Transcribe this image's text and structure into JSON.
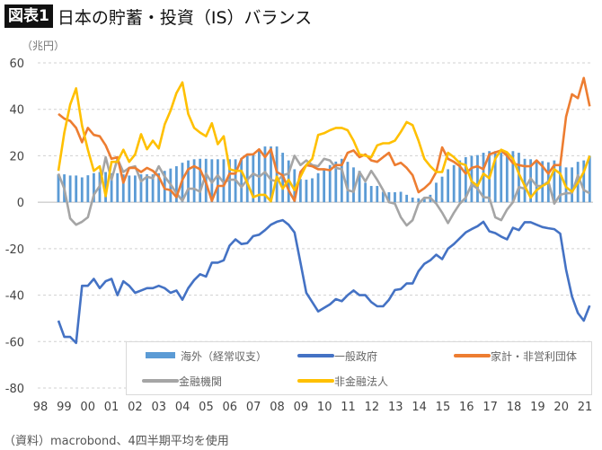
{
  "header": {
    "badge": "図表1",
    "title": "日本の貯蓄・投資（IS）バランス"
  },
  "unit_label": "（兆円）",
  "footnote": "（資料）macrobond、4四半期平均を使用",
  "chart_data": {
    "type": "bar+line",
    "title": "日本の貯蓄・投資（IS）バランス",
    "ylabel": "（兆円）",
    "ylim": [
      -80,
      60
    ],
    "yticks": [
      60,
      40,
      20,
      0,
      -20,
      -40,
      -60,
      -80
    ],
    "x_tick_labels": [
      "98",
      "99",
      "00",
      "01",
      "02",
      "03",
      "04",
      "05",
      "06",
      "07",
      "08",
      "09",
      "10",
      "11",
      "12",
      "13",
      "14",
      "15",
      "16",
      "17",
      "18",
      "19",
      "20",
      "21"
    ],
    "frequency": "quarterly",
    "grid": true,
    "legend_position": "bottom",
    "series": [
      {
        "name": "海外（経常収支）",
        "type": "bar",
        "color": "#5b9bd5",
        "values": [
          12,
          12,
          11.5,
          11.5,
          10.7,
          11.6,
          12.5,
          13,
          13,
          12.5,
          12.5,
          12,
          11.5,
          11.5,
          12,
          12,
          12,
          12.5,
          13.5,
          14.5,
          15.5,
          17,
          18,
          18.5,
          18.7,
          18.7,
          18.5,
          18.5,
          18.5,
          18.5,
          18.5,
          19,
          20,
          21,
          22.5,
          24,
          24,
          24,
          21.3,
          18,
          14.2,
          10,
          9.7,
          10.3,
          12.5,
          14,
          16,
          17.5,
          18.7,
          17.4,
          15,
          13.5,
          8.4,
          7,
          7,
          4.5,
          4.3,
          4.3,
          4.5,
          3.2,
          2,
          1.7,
          2.2,
          3.2,
          8.4,
          11,
          14.2,
          16,
          18,
          19.4,
          20,
          20.3,
          21.3,
          22,
          22,
          21.3,
          21.5,
          22,
          21.3,
          18.7,
          18.5,
          18,
          17.7,
          17.2,
          18,
          16,
          15,
          15,
          17.4,
          18,
          20
        ]
      },
      {
        "name": "一般政府",
        "type": "line",
        "color": "#4472c4",
        "values": [
          -51,
          -58,
          -58,
          -60.6,
          -36,
          -36,
          -33,
          -37,
          -34,
          -33,
          -40,
          -34,
          -36,
          -39,
          -38,
          -37,
          -37,
          -36,
          -37,
          -39,
          -38,
          -42,
          -37,
          -33.5,
          -31,
          -32,
          -26,
          -26,
          -25,
          -18.7,
          -16,
          -18,
          -17.6,
          -14.6,
          -14,
          -12,
          -9.7,
          -8.4,
          -7.7,
          -9.7,
          -13,
          -26,
          -39,
          -43,
          -47,
          -45.5,
          -44,
          -41.7,
          -42.6,
          -40,
          -38,
          -40,
          -40,
          -43,
          -44.8,
          -44.8,
          -42,
          -37.8,
          -37.4,
          -35,
          -35,
          -29.7,
          -26.5,
          -25,
          -22.6,
          -24.5,
          -20,
          -18,
          -15.5,
          -13,
          -11.6,
          -10.3,
          -8.4,
          -12.5,
          -13.3,
          -14.8,
          -16,
          -11,
          -12,
          -8.6,
          -8.6,
          -9.7,
          -10.7,
          -11.2,
          -11.6,
          -13.5,
          -29,
          -40.6,
          -47.7,
          -51,
          -44.5
        ]
      },
      {
        "name": "家計・非営利団体",
        "type": "line",
        "color": "#ed7d31",
        "values": [
          38,
          36,
          35,
          32,
          25.8,
          32,
          29,
          28.4,
          24.5,
          18.7,
          19.4,
          8.4,
          14.8,
          14.8,
          13,
          14.8,
          13.5,
          11,
          5.8,
          5.2,
          2.2,
          9.7,
          14.2,
          15.5,
          14.2,
          8.4,
          0.6,
          7,
          7,
          12.3,
          12.3,
          18.7,
          20.6,
          20.6,
          22.8,
          19.4,
          22.8,
          13,
          11.6,
          5.2,
          0.6,
          13,
          16,
          15.5,
          14.2,
          14.2,
          13.8,
          16,
          16,
          21.3,
          22.3,
          19.4,
          20.6,
          18,
          17.4,
          19.4,
          21.3,
          16,
          17,
          14.8,
          11.6,
          4.3,
          6,
          8.4,
          13,
          23.6,
          18.7,
          17.4,
          15.5,
          12.3,
          14.8,
          15.5,
          14.2,
          20.6,
          21.5,
          22.3,
          20,
          16.8,
          16,
          15.5,
          15.5,
          18,
          15.5,
          12.3,
          16,
          16,
          36.8,
          46.5,
          44.8,
          53.5,
          41.3
        ]
      },
      {
        "name": "金融機関",
        "type": "line",
        "color": "#a5a5a5",
        "values": [
          12.3,
          5.8,
          -7,
          -9.7,
          -8.4,
          -6.5,
          3.2,
          7,
          19.4,
          9.7,
          18.7,
          13,
          14.8,
          15.5,
          9,
          11,
          10.3,
          15.5,
          11,
          7.7,
          3.9,
          0.6,
          5.8,
          5.8,
          4.5,
          12.3,
          8.4,
          11.6,
          8.4,
          9.7,
          9.7,
          6.5,
          9.7,
          12.3,
          11,
          13,
          9.7,
          9,
          11.6,
          12.3,
          20,
          16,
          18,
          16,
          15.5,
          18.7,
          18,
          14.8,
          14.2,
          5.2,
          4.5,
          13,
          9,
          13.5,
          9.7,
          5.2,
          0,
          -0.6,
          -6.5,
          -10,
          -7.7,
          -0.6,
          1.9,
          1.9,
          -0.6,
          -4.5,
          -9,
          -4.5,
          -0.6,
          1.9,
          7.7,
          5.8,
          2.2,
          1.9,
          -6.5,
          -7.7,
          -3.2,
          0,
          6.5,
          5.8,
          10.3,
          7,
          7,
          9,
          -0.6,
          3.2,
          3.9,
          3.9,
          11.6,
          5.2,
          3.9
        ]
      },
      {
        "name": "非金融法人",
        "type": "line",
        "color": "#ffc000",
        "values": [
          13.5,
          30,
          42,
          49,
          33,
          22.6,
          13.5,
          15.5,
          2.6,
          17.4,
          17.4,
          22.6,
          17.4,
          20.6,
          29.3,
          22.8,
          26.5,
          23.2,
          33.5,
          39.4,
          47,
          51.6,
          38,
          32,
          30,
          28.4,
          34,
          25,
          28.4,
          14.2,
          13.5,
          13.5,
          8.4,
          2.2,
          3.2,
          3.2,
          0.4,
          11,
          5.8,
          9.7,
          5.2,
          11,
          16,
          18.7,
          29,
          29.7,
          31,
          32,
          32,
          31,
          26.5,
          20.6,
          20,
          19.4,
          24.5,
          25.4,
          25.4,
          26.5,
          30.3,
          34.5,
          33.2,
          26.5,
          18.7,
          15.5,
          13,
          13,
          21.3,
          19.4,
          16.8,
          16,
          9,
          7,
          12.3,
          10.3,
          18.7,
          22.6,
          21.5,
          18.7,
          12.3,
          7,
          2,
          5.2,
          7,
          8.4,
          14.2,
          12.3,
          6.5,
          4.5,
          8.4,
          13,
          20
        ]
      }
    ]
  }
}
